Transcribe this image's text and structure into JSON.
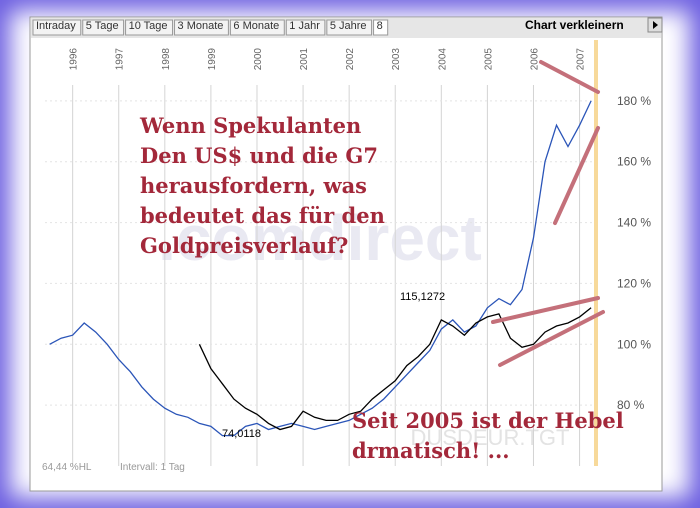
{
  "tabs": [
    "Intraday",
    "5 Tage",
    "10 Tage",
    "3 Monate",
    "6 Monate",
    "1 Jahr",
    "5 Jahre",
    "8"
  ],
  "button": "Chart verkleinern",
  "watermark": ".comdirect",
  "symbol": "DUSDEUR.TGT",
  "footer": [
    "64,44 %HL",
    "Intervall: 1 Tag"
  ],
  "chart_data": {
    "type": "line",
    "annotations": [
      "Wenn Spekulanten",
      "Den US$ und die G7",
      "herausfordern, was",
      "bedeutet das für den",
      "Goldpreisverlauf?",
      "Seit 2005 ist der Hebel",
      "drmatisch! ...",
      "115,1272",
      "74,0118"
    ],
    "x": [
      1995.5,
      1995.75,
      1996,
      1996.25,
      1996.5,
      1996.75,
      1997,
      1997.25,
      1997.5,
      1997.75,
      1998,
      1998.25,
      1998.5,
      1998.75,
      1999,
      1999.25,
      1999.5,
      1999.75,
      2000,
      2000.25,
      2000.5,
      2000.75,
      2001,
      2001.25,
      2001.5,
      2001.75,
      2002,
      2002.25,
      2002.5,
      2002.75,
      2003,
      2003.25,
      2003.5,
      2003.75,
      2004,
      2004.25,
      2004.5,
      2004.75,
      2005,
      2005.25,
      2005.5,
      2005.75,
      2006,
      2006.25,
      2006.5,
      2006.75,
      2007,
      2007.25
    ],
    "series": [
      {
        "color": "#2b55b8",
        "values": [
          100,
          102,
          103,
          107,
          104,
          100,
          95,
          91,
          86,
          82,
          79,
          77,
          76,
          74,
          73,
          70,
          70,
          73,
          74,
          72,
          73,
          74,
          73,
          72,
          73,
          74,
          75,
          77,
          79,
          82,
          86,
          90,
          94,
          98,
          105,
          108,
          104,
          106,
          112,
          115,
          113,
          118,
          135,
          160,
          172,
          165,
          172,
          180
        ]
      },
      {
        "color": "#000000",
        "values": [
          null,
          null,
          null,
          null,
          null,
          null,
          null,
          null,
          null,
          null,
          null,
          null,
          null,
          100,
          92,
          87,
          82,
          79,
          77,
          74,
          72,
          73,
          78,
          76,
          75,
          75,
          77,
          78,
          82,
          85,
          88,
          93,
          96,
          100,
          108,
          106,
          103,
          107,
          109,
          110,
          102,
          99,
          100,
          104,
          106,
          107,
          109,
          112
        ]
      }
    ],
    "xlim": [
      1995.4,
      2007.4
    ],
    "xticks": [
      1996,
      1997,
      1998,
      1999,
      2000,
      2001,
      2002,
      2003,
      2004,
      2005,
      2006,
      2007
    ],
    "ylim": [
      60,
      200
    ],
    "yticks": [
      {
        "value": 80,
        "label": "80 %"
      },
      {
        "value": 100,
        "label": "100 %"
      },
      {
        "value": 120,
        "label": "120 %"
      },
      {
        "value": 140,
        "label": "140 %"
      },
      {
        "value": 160,
        "label": "160 %"
      },
      {
        "value": 180,
        "label": "180 %"
      }
    ],
    "grid": true
  }
}
